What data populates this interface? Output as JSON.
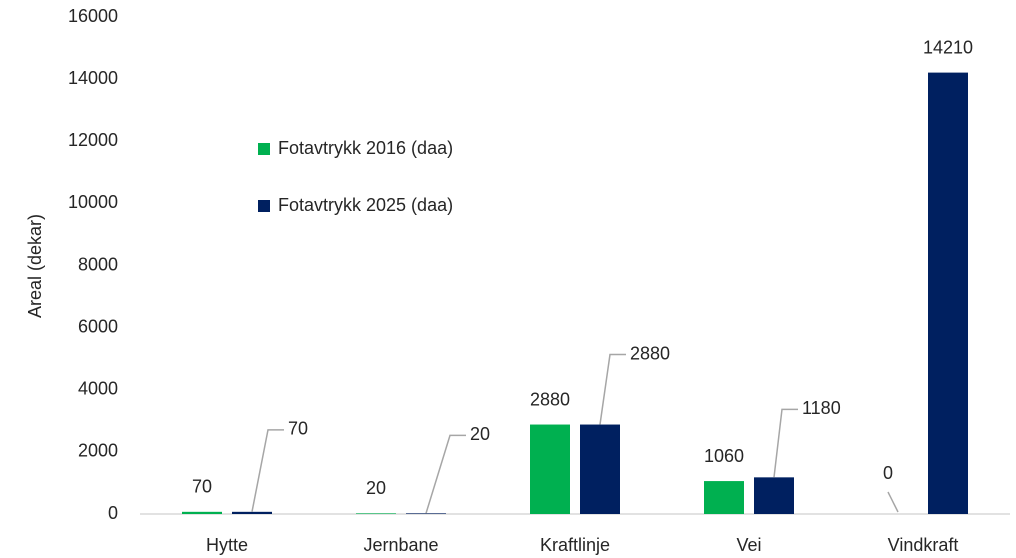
{
  "chart_data": {
    "type": "bar",
    "categories": [
      "Hytte",
      "Jernbane",
      "Kraftlinje",
      "Vei",
      "Vindkraft"
    ],
    "series": [
      {
        "name": "Fotavtrykk 2016 (daa)",
        "color": "#00b050",
        "values": [
          70,
          20,
          2880,
          1060,
          0
        ]
      },
      {
        "name": "Fotavtrykk 2025 (daa)",
        "color": "#002060",
        "values": [
          70,
          20,
          2880,
          1180,
          14210
        ]
      }
    ],
    "y_label": "Areal (dekar)",
    "ylim": [
      0,
      16000
    ],
    "yticks": [
      0,
      2000,
      4000,
      6000,
      8000,
      10000,
      12000,
      14000,
      16000
    ],
    "grid": false
  }
}
